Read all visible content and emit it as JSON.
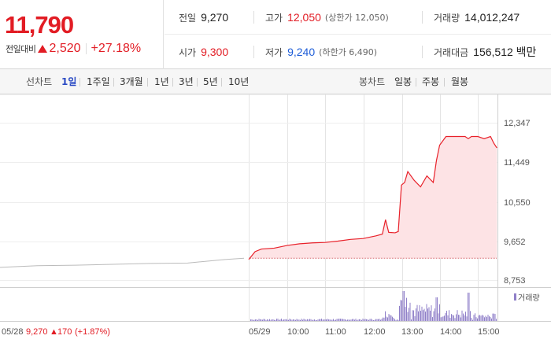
{
  "header": {
    "current_price": "11,790",
    "change_label": "전일대비",
    "change_amount": "2,520",
    "change_rate": "+27.18%",
    "up_color": "#e21c24",
    "down_color": "#1f5ed8"
  },
  "stats": {
    "prev_close_label": "전일",
    "prev_close": "9,270",
    "high_label": "고가",
    "high": "12,050",
    "upper_limit": "(상한가 12,050)",
    "volume_label": "거래량",
    "volume": "14,012,247",
    "open_label": "시가",
    "open": "9,300",
    "low_label": "저가",
    "low": "9,240",
    "lower_limit": "(하한가 6,490)",
    "amount_label": "거래대금",
    "amount": "156,512 백만"
  },
  "period_bar": {
    "line_chart_label": "선차트",
    "line_periods": [
      "1일",
      "1주일",
      "3개월",
      "1년",
      "3년",
      "5년",
      "10년"
    ],
    "active_period": "1일",
    "candle_chart_label": "봉차트",
    "candle_periods": [
      "일봉",
      "주봉",
      "월봉"
    ]
  },
  "chart_data": {
    "type": "line",
    "title": "",
    "xlabel": "",
    "ylabel": "",
    "y_ticks": [
      "12,347",
      "11,449",
      "10,550",
      "9,652",
      "8,753"
    ],
    "y_tick_values": [
      12347,
      11449,
      10550,
      9652,
      8753
    ],
    "ylim": [
      8753,
      12347
    ],
    "x_ticks": [
      "05/28",
      "05/29",
      "10:00",
      "11:00",
      "12:00",
      "13:00",
      "14:00",
      "15:00"
    ],
    "yesterday_label": "05/28",
    "yesterday_price": "9,270",
    "yesterday_change": "170",
    "yesterday_rate": "(+1.87%)",
    "volume_legend": "거래량",
    "reference_price": 9270,
    "line_color": "#e8212a",
    "fill_color": "#fde3e5",
    "prev_line_color": "#bbbbbb",
    "volume_color": "#8f7fc8",
    "prev_day": {
      "x": [
        "05/28 09:00",
        "05/28 10:00",
        "05/28 11:00",
        "05/28 12:00",
        "05/28 13:00",
        "05/28 14:00",
        "05/28 15:00",
        "05/28 15:30"
      ],
      "price": [
        9060,
        9100,
        9110,
        9130,
        9150,
        9160,
        9240,
        9270
      ]
    },
    "today": {
      "x": [
        "09:00",
        "09:10",
        "09:20",
        "09:40",
        "10:00",
        "10:20",
        "10:40",
        "11:00",
        "11:20",
        "11:40",
        "12:00",
        "12:20",
        "12:30",
        "12:35",
        "12:40",
        "12:50",
        "12:55",
        "13:00",
        "13:05",
        "13:10",
        "13:20",
        "13:30",
        "13:40",
        "13:50",
        "13:55",
        "14:00",
        "14:10",
        "14:20",
        "14:30",
        "14:40",
        "14:45",
        "14:50",
        "15:00",
        "15:10",
        "15:20",
        "15:25",
        "15:30"
      ],
      "price": [
        9240,
        9420,
        9480,
        9500,
        9560,
        9600,
        9620,
        9630,
        9660,
        9700,
        9720,
        9780,
        9820,
        10150,
        9860,
        9850,
        9880,
        10940,
        11000,
        11250,
        11050,
        10900,
        11150,
        11000,
        11500,
        11850,
        12050,
        12050,
        12050,
        12050,
        12000,
        12050,
        12050,
        12000,
        12050,
        11900,
        11790
      ]
    }
  }
}
